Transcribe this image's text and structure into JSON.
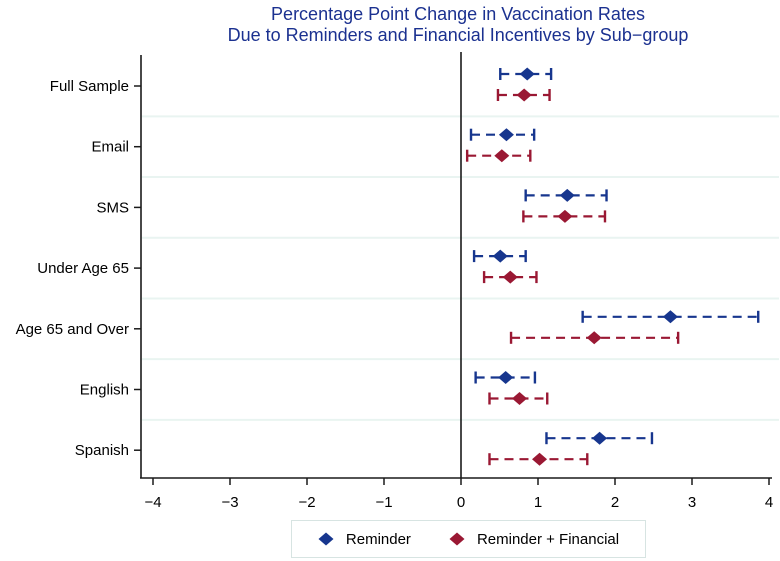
{
  "title": {
    "line1": "Percentage Point Change in Vaccination Rates",
    "line2": "Due to Reminders and Financial Incentives by Sub−group"
  },
  "colors": {
    "title": "#1b3190",
    "reminder": "#17368e",
    "reminder_financial": "#9a1833",
    "axis": "#1a1a1a",
    "gridline": "#e9f4f1",
    "tick_text": "#000000",
    "legend_border": "#d7e4e2"
  },
  "legend": {
    "items": [
      {
        "label": "Reminder",
        "color_key": "reminder"
      },
      {
        "label": "Reminder + Financial",
        "color_key": "reminder_financial"
      }
    ],
    "position": "bottom"
  },
  "chart_data": {
    "type": "scatter",
    "subtype": "coefficient-plot-with-confidence-intervals",
    "title": "Percentage Point Change in Vaccination Rates Due to Reminders and Financial Incentives by Sub−group",
    "categories": [
      "Full Sample",
      "Email",
      "SMS",
      "Under Age 65",
      "Age 65 and Over",
      "English",
      "Spanish"
    ],
    "x_ticks": [
      -4,
      -3,
      -2,
      -1,
      0,
      1,
      2,
      3,
      4
    ],
    "xlim": [
      -4.15,
      4.05
    ],
    "xlabel": "",
    "ylabel": "",
    "grid": "light horizontal lines between category rows",
    "zero_reference_line": true,
    "legend_position": "bottom",
    "series": [
      {
        "name": "Reminder",
        "color": "#17368e",
        "values": [
          0.86,
          0.59,
          1.38,
          0.51,
          2.72,
          0.58,
          1.8
        ],
        "ci_low": [
          0.51,
          0.13,
          0.84,
          0.17,
          1.58,
          0.19,
          1.11
        ],
        "ci_high": [
          1.17,
          0.95,
          1.89,
          0.84,
          3.86,
          0.96,
          2.48
        ]
      },
      {
        "name": "Reminder + Financial",
        "color": "#9a1833",
        "values": [
          0.82,
          0.53,
          1.35,
          0.64,
          1.73,
          0.76,
          1.02
        ],
        "ci_low": [
          0.48,
          0.08,
          0.81,
          0.3,
          0.65,
          0.37,
          0.37
        ],
        "ci_high": [
          1.15,
          0.9,
          1.87,
          0.98,
          2.82,
          1.12,
          1.64
        ]
      }
    ]
  }
}
